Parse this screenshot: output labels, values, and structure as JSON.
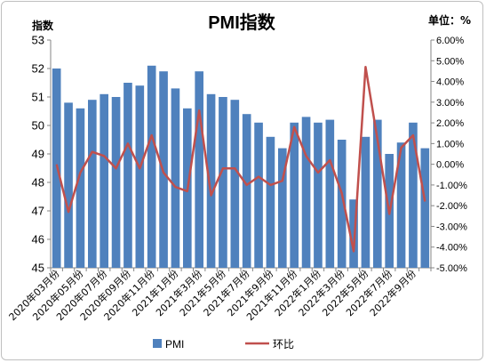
{
  "chart_data": {
    "type": "bar+line",
    "title": "PMI指数",
    "ylabel_left": "指数",
    "ylabel_right": "单位：%",
    "ylim_left": [
      45,
      53
    ],
    "ylim_right": [
      -5.0,
      6.0
    ],
    "left_ticks": [
      "45",
      "46",
      "47",
      "48",
      "49",
      "50",
      "51",
      "52",
      "53"
    ],
    "right_ticks": [
      "-5.00%",
      "-4.00%",
      "-3.00%",
      "-2.00%",
      "-1.00%",
      "0.00%",
      "1.00%",
      "2.00%",
      "3.00%",
      "4.00%",
      "5.00%",
      "6.00%"
    ],
    "categories": [
      "2020年03月份",
      "2020年04月份",
      "2020年05月份",
      "2020年06月份",
      "2020年07月份",
      "2020年08月份",
      "2020年09月份",
      "2020年10月份",
      "2020年11月份",
      "2020年12月份",
      "2021年1月份",
      "2021年2月份",
      "2021年3月份",
      "2021年4月份",
      "2021年5月份",
      "2021年6月份",
      "2021年7月份",
      "2021年8月份",
      "2021年9月份",
      "2021年10月份",
      "2021年11月份",
      "2021年12月份",
      "2022年1月份",
      "2022年2月份",
      "2022年3月份",
      "2022年4月份",
      "2022年5月份",
      "2022年6月份",
      "2022年7月份",
      "2022年8月份",
      "2022年9月份",
      "2022年10月份"
    ],
    "tick_labels": [
      "2020年03月份",
      "2020年05月份",
      "2020年07月份",
      "2020年09月份",
      "2020年11月份",
      "2021年1月份",
      "2021年3月份",
      "2021年5月份",
      "2021年7月份",
      "2021年9月份",
      "2021年11月份",
      "2022年1月份",
      "2022年3月份",
      "2022年5月份",
      "2022年7月份",
      "2022年9月份"
    ],
    "series": [
      {
        "name": "PMI",
        "type": "bar",
        "axis": "left",
        "color": "#4f81bd",
        "values": [
          52.0,
          50.8,
          50.6,
          50.9,
          51.1,
          51.0,
          51.5,
          51.4,
          52.1,
          51.9,
          51.3,
          50.6,
          51.9,
          51.1,
          51.0,
          50.9,
          50.4,
          50.1,
          49.6,
          49.2,
          50.1,
          50.3,
          50.1,
          50.2,
          49.5,
          47.4,
          49.6,
          50.2,
          49.0,
          49.4,
          50.1,
          49.2
        ]
      },
      {
        "name": "环比",
        "type": "line",
        "axis": "right",
        "color": "#c0504d",
        "values": [
          0.0,
          -2.3,
          -0.4,
          0.6,
          0.4,
          -0.2,
          1.0,
          -0.2,
          1.4,
          -0.4,
          -1.1,
          -1.3,
          2.6,
          -1.5,
          -0.2,
          -0.2,
          -1.0,
          -0.6,
          -1.0,
          -0.8,
          1.8,
          0.4,
          -0.4,
          0.2,
          -1.4,
          -4.2,
          4.7,
          1.2,
          -2.4,
          0.8,
          1.4,
          -1.8
        ]
      }
    ],
    "legend_position": "bottom",
    "grid": false
  }
}
